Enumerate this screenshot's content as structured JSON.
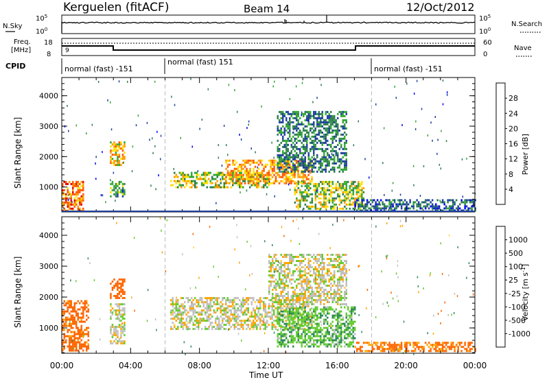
{
  "header": {
    "station": "Kerguelen (fitACF)",
    "beam": "Beam 14",
    "date": "12/Oct/2012"
  },
  "strips": {
    "nsky_label": "N.Sky",
    "nsearch_label": "N.Search",
    "freq_label_1": "Freq.",
    "freq_label_2": "[MHz]",
    "nave_label": "Nave",
    "cpid_label": "CPID",
    "nsky_ticks": [
      "10^5",
      "10^0"
    ],
    "nsearch_ticks": [
      "10^5",
      "10^0"
    ],
    "freq_ticks": [
      "18",
      "8"
    ],
    "nave_ticks": [
      "60",
      "0"
    ],
    "nave_value": "9",
    "cpid_segments": [
      "normal (fast) -151",
      "normal (fast) 151",
      "normal (fast) -151"
    ]
  },
  "colors": {
    "power_scale": [
      "#0000ff",
      "#1f3fa0",
      "#2e7d4f",
      "#33a833",
      "#ffe000",
      "#ff9900",
      "#ff5500",
      "#e00000"
    ],
    "velocity_scale": [
      "#e00000",
      "#ff6600",
      "#ffa500",
      "#ffd24d",
      "#c0c0c0",
      "#66cc33",
      "#2e8b57",
      "#2a5aa8",
      "#1a1aa0"
    ]
  },
  "chart_data": [
    {
      "type": "heatmap",
      "title": "",
      "xlabel": "",
      "ylabel": "Slant Range [km]",
      "colorbar_label": "Power [dB]",
      "colorbar_ticks": [
        "28",
        "24",
        "20",
        "16",
        "12",
        "8",
        "4"
      ],
      "x_ticks": [
        "00:00",
        "04:00",
        "08:00",
        "12:00",
        "16:00",
        "20:00",
        "00:00"
      ],
      "y_ticks": [
        "1000",
        "2000",
        "3000",
        "4000"
      ],
      "xlim_hours": [
        0,
        24
      ],
      "ylim_km": [
        180,
        4600
      ],
      "cpid_boundaries_hours": [
        6,
        18
      ],
      "regions": [
        {
          "t": [
            0.0,
            1.2
          ],
          "r": [
            250,
            1200
          ],
          "level": 24
        },
        {
          "t": [
            2.8,
            3.6
          ],
          "r": [
            1700,
            2500
          ],
          "level": 20
        },
        {
          "t": [
            2.8,
            3.6
          ],
          "r": [
            700,
            1200
          ],
          "level": 12
        },
        {
          "t": [
            6.3,
            12.0
          ],
          "r": [
            1000,
            1500
          ],
          "level": 16
        },
        {
          "t": [
            9.5,
            14.5
          ],
          "r": [
            1100,
            1900
          ],
          "level": 22
        },
        {
          "t": [
            12.5,
            16.5
          ],
          "r": [
            1500,
            3500
          ],
          "level": 10
        },
        {
          "t": [
            13.5,
            17.5
          ],
          "r": [
            300,
            1200
          ],
          "level": 16
        },
        {
          "t": [
            17.0,
            24.0
          ],
          "r": [
            250,
            600
          ],
          "level": 8
        }
      ]
    },
    {
      "type": "heatmap",
      "title": "",
      "xlabel": "Time UT",
      "ylabel": "Slant Range [km]",
      "colorbar_label": "Velocity [m s^-1]",
      "colorbar_ticks": [
        "1000",
        "500",
        "100",
        "25",
        "-25",
        "-100",
        "-500",
        "-1000"
      ],
      "x_ticks": [
        "00:00",
        "04:00",
        "08:00",
        "12:00",
        "16:00",
        "20:00",
        "00:00"
      ],
      "y_ticks": [
        "1000",
        "2000",
        "3000",
        "4000"
      ],
      "xlim_hours": [
        0,
        24
      ],
      "ylim_km": [
        180,
        4600
      ],
      "cpid_boundaries_hours": [
        6,
        18
      ],
      "regions": [
        {
          "t": [
            0.0,
            1.5
          ],
          "r": [
            250,
            1900
          ],
          "velocity": -150
        },
        {
          "t": [
            2.8,
            3.6
          ],
          "r": [
            2000,
            2600
          ],
          "velocity": -400
        },
        {
          "t": [
            2.8,
            3.6
          ],
          "r": [
            500,
            1800
          ],
          "velocity": 0
        },
        {
          "t": [
            6.3,
            14.5
          ],
          "r": [
            1000,
            2000
          ],
          "velocity": 0
        },
        {
          "t": [
            12.0,
            16.5
          ],
          "r": [
            1800,
            3400
          ],
          "velocity": 0
        },
        {
          "t": [
            12.5,
            17.0
          ],
          "r": [
            400,
            1700
          ],
          "velocity": 80
        },
        {
          "t": [
            17.0,
            24.0
          ],
          "r": [
            250,
            550
          ],
          "velocity": -120
        }
      ]
    }
  ]
}
